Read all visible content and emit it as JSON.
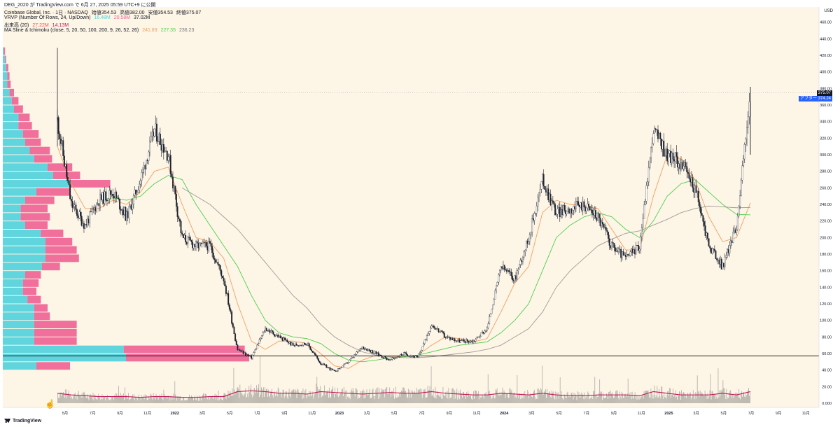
{
  "header": {
    "title": "DEG_2020 が TradingView.com で 6月 27, 2025 05:59 UTC+9 に公開",
    "symbol_line": [
      "Coinbase Global, Inc. · 1日 · NASDAQ",
      "始値354.53",
      "高値382.00",
      "安値354.53",
      "終値375.07"
    ],
    "vrvp_line": [
      "VRVP (Number Of Rows, 24, Up/Down)",
      "16.48M",
      "20.58M",
      "37.02M"
    ],
    "volume_line": [
      "出来高 (20)",
      "27.22M",
      "14.13M"
    ],
    "ma_line": [
      "MA Sline & Ichimoku (close, 5, 20, 50, 100, 200, 9, 26, 52, 26)",
      "241.89",
      "227.35",
      "236.23"
    ]
  },
  "price_tags": {
    "last": "375.07",
    "after_label": "アフター",
    "after_value": "374.24"
  },
  "brand": "TradingView",
  "colors": {
    "background": "#fdf5e6",
    "candle": "#1e222d",
    "ma_orange": "#f0a060",
    "ma_green": "#4cd04c",
    "ma_gray": "#a09c98",
    "volume_bar": "#b7b3ac",
    "volume_ma": "#c2185b",
    "vrvp_up": "#4fd1db",
    "vrvp_down": "#f06292",
    "last_price_tag": "#131722",
    "after_tag": "#2962ff",
    "hline": "#000000"
  },
  "chart_data": {
    "type": "line",
    "title": "Coinbase Global, Inc. · 1日 · NASDAQ",
    "ylabel": "USD",
    "ylim": [
      0,
      480
    ],
    "yticks": [
      "0.000",
      "20.00",
      "40.00",
      "60.00",
      "80.00",
      "100.00",
      "120.00",
      "140.00",
      "160.00",
      "180.00",
      "200.00",
      "220.00",
      "240.00",
      "260.00",
      "280.00",
      "300.00",
      "320.00",
      "340.00",
      "360.00",
      "380.00",
      "400.00",
      "420.00",
      "440.00",
      "460.00"
    ],
    "x_tick_labels": [
      "5月",
      "7月",
      "9月",
      "11月",
      "2022",
      "3月",
      "5月",
      "7月",
      "9月",
      "11月",
      "2023",
      "3月",
      "5月",
      "7月",
      "9月",
      "11月",
      "2024",
      "3月",
      "5月",
      "7月",
      "9月",
      "11月",
      "2025",
      "3月",
      "5月",
      "7月",
      "9月",
      "11月"
    ],
    "horizontal_line": 57,
    "last_price": 375.07,
    "price_series": {
      "name": "close",
      "x": [
        "2021-04",
        "2021-05",
        "2021-06",
        "2021-07",
        "2021-08",
        "2021-09",
        "2021-10",
        "2021-11",
        "2021-12",
        "2022-01",
        "2022-02",
        "2022-03",
        "2022-04",
        "2022-05",
        "2022-06",
        "2022-07",
        "2022-08",
        "2022-09",
        "2022-10",
        "2022-11",
        "2022-12",
        "2023-01",
        "2023-02",
        "2023-03",
        "2023-04",
        "2023-05",
        "2023-06",
        "2023-07",
        "2023-08",
        "2023-09",
        "2023-10",
        "2023-11",
        "2023-12",
        "2024-01",
        "2024-02",
        "2024-03",
        "2024-04",
        "2024-05",
        "2024-06",
        "2024-07",
        "2024-08",
        "2024-09",
        "2024-10",
        "2024-11",
        "2024-12",
        "2025-01",
        "2025-02",
        "2025-03",
        "2025-04",
        "2025-05",
        "2025-06"
      ],
      "y": [
        342,
        240,
        215,
        245,
        255,
        225,
        270,
        330,
        300,
        200,
        190,
        190,
        150,
        65,
        55,
        90,
        80,
        70,
        72,
        48,
        38,
        50,
        68,
        60,
        52,
        60,
        55,
        95,
        80,
        75,
        75,
        90,
        165,
        150,
        200,
        270,
        230,
        235,
        240,
        225,
        190,
        175,
        190,
        330,
        300,
        290,
        260,
        190,
        165,
        215,
        375
      ]
    },
    "ma_series": [
      {
        "name": "241.89",
        "color": "orange",
        "y": [
          310,
          265,
          235,
          235,
          245,
          240,
          255,
          280,
          285,
          240,
          200,
          195,
          175,
          120,
          75,
          65,
          75,
          75,
          72,
          60,
          45,
          42,
          52,
          58,
          56,
          56,
          58,
          70,
          80,
          78,
          74,
          78,
          110,
          145,
          165,
          230,
          245,
          240,
          238,
          235,
          210,
          185,
          185,
          250,
          300,
          295,
          270,
          225,
          195,
          200,
          241.89
        ]
      },
      {
        "name": "227.35",
        "color": "green",
        "y": [
          null,
          null,
          null,
          245,
          248,
          245,
          250,
          265,
          275,
          270,
          240,
          215,
          190,
          165,
          130,
          100,
          85,
          80,
          78,
          72,
          60,
          52,
          50,
          52,
          55,
          56,
          58,
          62,
          66,
          70,
          72,
          74,
          85,
          100,
          120,
          160,
          200,
          215,
          225,
          230,
          225,
          210,
          200,
          220,
          250,
          265,
          270,
          255,
          240,
          228,
          227.35
        ]
      },
      {
        "name": "236.23",
        "color": "gray",
        "y": [
          null,
          null,
          null,
          null,
          null,
          null,
          null,
          null,
          null,
          260,
          250,
          240,
          225,
          210,
          190,
          170,
          150,
          130,
          115,
          95,
          80,
          70,
          62,
          58,
          56,
          55,
          55,
          56,
          58,
          60,
          62,
          65,
          70,
          80,
          90,
          110,
          140,
          160,
          175,
          190,
          198,
          205,
          208,
          215,
          222,
          230,
          235,
          238,
          237,
          236,
          236.23
        ]
      }
    ],
    "volume_ma_series": {
      "name": "出来高 (20)",
      "y": [
        12,
        10,
        9,
        8,
        8,
        8,
        7,
        8,
        8,
        7,
        7,
        8,
        8,
        14,
        15,
        14,
        12,
        12,
        11,
        14,
        13,
        12,
        11,
        12,
        13,
        12,
        12,
        14,
        12,
        11,
        10,
        10,
        12,
        11,
        10,
        12,
        10,
        9,
        9,
        10,
        10,
        10,
        9,
        14,
        12,
        10,
        10,
        10,
        12,
        10,
        14
      ]
    },
    "vrvp": {
      "price_bins_low": [
        40,
        50,
        60,
        70,
        80,
        90,
        100,
        110,
        120,
        130,
        140,
        150,
        160,
        170,
        180,
        190,
        200,
        210,
        220,
        230,
        240,
        250,
        260,
        270,
        280,
        290,
        300,
        310,
        320,
        330,
        340,
        350,
        360,
        370,
        380,
        390,
        400,
        410,
        420
      ],
      "up": [
        30,
        110,
        108,
        28,
        28,
        28,
        28,
        28,
        22,
        18,
        18,
        20,
        35,
        38,
        38,
        38,
        34,
        20,
        16,
        16,
        20,
        30,
        60,
        45,
        40,
        28,
        24,
        20,
        18,
        14,
        14,
        10,
        8,
        6,
        4,
        4,
        3,
        2,
        1
      ],
      "down": [
        30,
        110,
        108,
        38,
        38,
        38,
        14,
        12,
        12,
        12,
        14,
        14,
        16,
        30,
        28,
        24,
        20,
        20,
        26,
        24,
        26,
        30,
        36,
        24,
        22,
        16,
        18,
        14,
        14,
        12,
        10,
        8,
        6,
        4,
        3,
        2,
        2,
        1,
        1
      ]
    }
  }
}
